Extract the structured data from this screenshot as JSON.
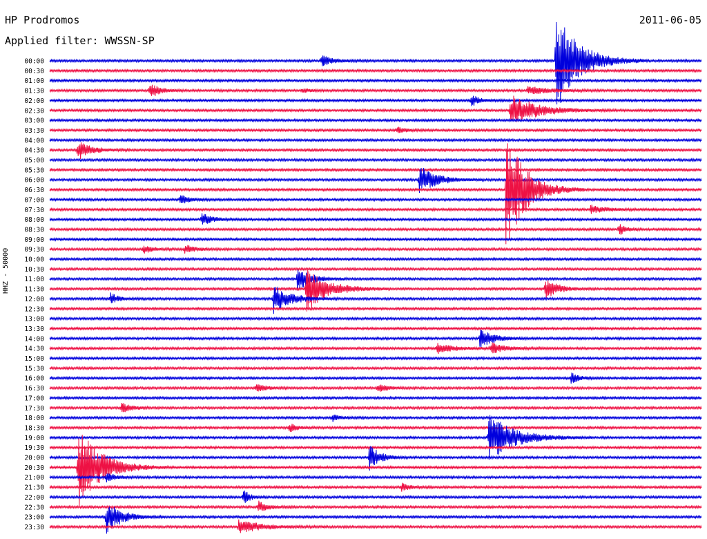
{
  "header": {
    "station": "HP Prodromos",
    "filter": "Applied filter: WWSSN-SP",
    "date": "2011-06-05"
  },
  "chart_data": {
    "type": "line",
    "title": "HP Prodromos",
    "subtitle": "Applied filter: WWSSN-SP",
    "date": "2011-06-05",
    "ylabel": "HHZ - 50000",
    "colors": {
      "even_trace": "#0000dd",
      "odd_trace": "#ee1144"
    },
    "rows": [
      {
        "time": "00:00"
      },
      {
        "time": "00:30"
      },
      {
        "time": "01:00"
      },
      {
        "time": "01:30"
      },
      {
        "time": "02:00"
      },
      {
        "time": "02:30"
      },
      {
        "time": "03:00"
      },
      {
        "time": "03:30"
      },
      {
        "time": "04:00"
      },
      {
        "time": "04:30"
      },
      {
        "time": "05:00"
      },
      {
        "time": "05:30"
      },
      {
        "time": "06:00"
      },
      {
        "time": "06:30"
      },
      {
        "time": "07:00"
      },
      {
        "time": "07:30"
      },
      {
        "time": "08:00"
      },
      {
        "time": "08:30"
      },
      {
        "time": "09:00"
      },
      {
        "time": "09:30"
      },
      {
        "time": "10:00"
      },
      {
        "time": "10:30"
      },
      {
        "time": "11:00"
      },
      {
        "time": "11:30"
      },
      {
        "time": "12:00"
      },
      {
        "time": "12:30"
      },
      {
        "time": "13:00"
      },
      {
        "time": "13:30"
      },
      {
        "time": "14:00"
      },
      {
        "time": "14:30"
      },
      {
        "time": "15:00"
      },
      {
        "time": "15:30"
      },
      {
        "time": "16:00"
      },
      {
        "time": "16:30"
      },
      {
        "time": "17:00"
      },
      {
        "time": "17:30"
      },
      {
        "time": "18:00"
      },
      {
        "time": "18:30"
      },
      {
        "time": "19:00"
      },
      {
        "time": "19:30"
      },
      {
        "time": "20:00"
      },
      {
        "time": "20:30"
      },
      {
        "time": "21:00"
      },
      {
        "time": "21:30"
      },
      {
        "time": "22:00"
      },
      {
        "time": "22:30"
      },
      {
        "time": "23:00"
      },
      {
        "time": "23:30"
      }
    ],
    "events": [
      {
        "row": 0,
        "minute": 12.5,
        "amp": 9,
        "dur": 0.7
      },
      {
        "row": 0,
        "minute": 23.3,
        "amp": 75,
        "dur": 1.4
      },
      {
        "row": 3,
        "minute": 4.6,
        "amp": 12,
        "dur": 0.6
      },
      {
        "row": 3,
        "minute": 11.6,
        "amp": 3,
        "dur": 0.5
      },
      {
        "row": 3,
        "minute": 22.0,
        "amp": 6,
        "dur": 1.4
      },
      {
        "row": 4,
        "minute": 19.4,
        "amp": 9,
        "dur": 0.5
      },
      {
        "row": 5,
        "minute": 21.2,
        "amp": 25,
        "dur": 1.6
      },
      {
        "row": 7,
        "minute": 16.0,
        "amp": 5,
        "dur": 0.5
      },
      {
        "row": 9,
        "minute": 1.3,
        "amp": 14,
        "dur": 0.8
      },
      {
        "row": 12,
        "minute": 17.0,
        "amp": 22,
        "dur": 1.0
      },
      {
        "row": 13,
        "minute": 21.0,
        "amp": 90,
        "dur": 1.2
      },
      {
        "row": 14,
        "minute": 6.0,
        "amp": 8,
        "dur": 0.5
      },
      {
        "row": 15,
        "minute": 24.9,
        "amp": 6,
        "dur": 0.9
      },
      {
        "row": 16,
        "minute": 7.0,
        "amp": 10,
        "dur": 0.6
      },
      {
        "row": 17,
        "minute": 26.2,
        "amp": 10,
        "dur": 0.4
      },
      {
        "row": 19,
        "minute": 4.3,
        "amp": 6,
        "dur": 0.6
      },
      {
        "row": 19,
        "minute": 6.2,
        "amp": 7,
        "dur": 0.6
      },
      {
        "row": 22,
        "minute": 11.4,
        "amp": 20,
        "dur": 0.8
      },
      {
        "row": 23,
        "minute": 11.8,
        "amp": 35,
        "dur": 1.3
      },
      {
        "row": 23,
        "minute": 22.8,
        "amp": 16,
        "dur": 0.8
      },
      {
        "row": 24,
        "minute": 2.8,
        "amp": 8,
        "dur": 0.5
      },
      {
        "row": 24,
        "minute": 10.3,
        "amp": 22,
        "dur": 1.0
      },
      {
        "row": 28,
        "minute": 19.8,
        "amp": 15,
        "dur": 0.8
      },
      {
        "row": 29,
        "minute": 17.8,
        "amp": 8,
        "dur": 1.0
      },
      {
        "row": 29,
        "minute": 20.3,
        "amp": 8,
        "dur": 0.9
      },
      {
        "row": 32,
        "minute": 24.0,
        "amp": 8,
        "dur": 0.5
      },
      {
        "row": 33,
        "minute": 9.5,
        "amp": 6,
        "dur": 0.6
      },
      {
        "row": 33,
        "minute": 15.1,
        "amp": 6,
        "dur": 0.6
      },
      {
        "row": 35,
        "minute": 3.3,
        "amp": 8,
        "dur": 0.6
      },
      {
        "row": 36,
        "minute": 13.0,
        "amp": 6,
        "dur": 0.5
      },
      {
        "row": 37,
        "minute": 11.0,
        "amp": 7,
        "dur": 0.5
      },
      {
        "row": 38,
        "minute": 20.2,
        "amp": 35,
        "dur": 1.6
      },
      {
        "row": 40,
        "minute": 14.7,
        "amp": 22,
        "dur": 0.6
      },
      {
        "row": 41,
        "minute": 1.3,
        "amp": 60,
        "dur": 1.4
      },
      {
        "row": 42,
        "minute": 2.6,
        "amp": 8,
        "dur": 0.5
      },
      {
        "row": 43,
        "minute": 16.2,
        "amp": 6,
        "dur": 0.5
      },
      {
        "row": 44,
        "minute": 8.9,
        "amp": 12,
        "dur": 0.4
      },
      {
        "row": 45,
        "minute": 9.6,
        "amp": 9,
        "dur": 0.6
      },
      {
        "row": 46,
        "minute": 2.6,
        "amp": 25,
        "dur": 0.9
      },
      {
        "row": 47,
        "minute": 8.7,
        "amp": 10,
        "dur": 1.4
      }
    ]
  }
}
